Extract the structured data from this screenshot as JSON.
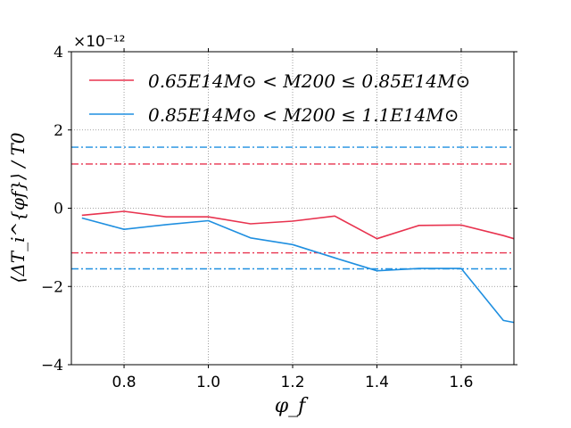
{
  "chart_data": {
    "type": "line",
    "title": "",
    "xlabel": "φ_f",
    "ylabel": "⟨ΔT_i^{φf}⟩ / T0",
    "y_offset_label": "×10⁻¹²",
    "xlim": [
      0.675,
      1.725
    ],
    "ylim": [
      -4,
      4
    ],
    "x_ticks": [
      0.8,
      1.0,
      1.2,
      1.4,
      1.6
    ],
    "x_tick_labels": [
      "0.8",
      "1.0",
      "1.2",
      "1.4",
      "1.6"
    ],
    "y_ticks": [
      -4,
      -2,
      0,
      2,
      4
    ],
    "y_tick_labels": [
      "−4",
      "−2",
      "0",
      "2",
      "4"
    ],
    "grid": true,
    "legend_position": "top-left",
    "series": [
      {
        "name": "0.65E14M⊙ < M200 ≤ 0.85E14M⊙",
        "legend_label": "0.65E14M⊙ < M200 ≤ 0.85E14M⊙",
        "color": "#e8334f",
        "x": [
          0.7,
          0.8,
          0.9,
          1.0,
          1.1,
          1.2,
          1.3,
          1.4,
          1.5,
          1.6,
          1.7,
          1.725
        ],
        "values": [
          -0.18,
          -0.08,
          -0.22,
          -0.22,
          -0.4,
          -0.33,
          -0.2,
          -0.78,
          -0.44,
          -0.43,
          -0.7,
          -0.78
        ],
        "bands": [
          1.13,
          -1.14
        ]
      },
      {
        "name": "0.85E14M⊙ < M200 ≤ 1.1E14M⊙",
        "legend_label": "0.85E14M⊙ < M200 ≤ 1.1E14M⊙",
        "color": "#1f8fe0",
        "x": [
          0.7,
          0.8,
          0.9,
          1.0,
          1.1,
          1.2,
          1.3,
          1.4,
          1.5,
          1.6,
          1.7,
          1.725
        ],
        "values": [
          -0.25,
          -0.54,
          -0.42,
          -0.32,
          -0.76,
          -0.93,
          -1.27,
          -1.6,
          -1.54,
          -1.54,
          -2.87,
          -2.92
        ],
        "bands": [
          1.56,
          -1.55
        ]
      }
    ]
  }
}
